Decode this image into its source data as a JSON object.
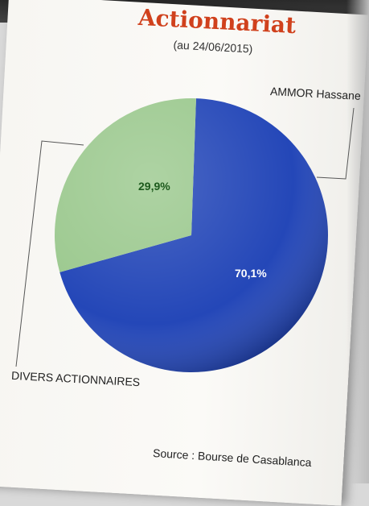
{
  "chart_data": {
    "type": "pie",
    "title": "Actionnariat",
    "subtitle": "(au 24/06/2015)",
    "categories": [
      "AMMOR Hassane",
      "DIVERS ACTIONNAIRES"
    ],
    "values": [
      70.1,
      29.9
    ],
    "value_labels": [
      "70,1%",
      "29,9%"
    ],
    "colors": [
      "#2447b8",
      "#9cc98f"
    ],
    "label_colors": [
      "#ffffff",
      "#1d5a1d"
    ],
    "source": "Source : Bourse de Casablanca"
  }
}
